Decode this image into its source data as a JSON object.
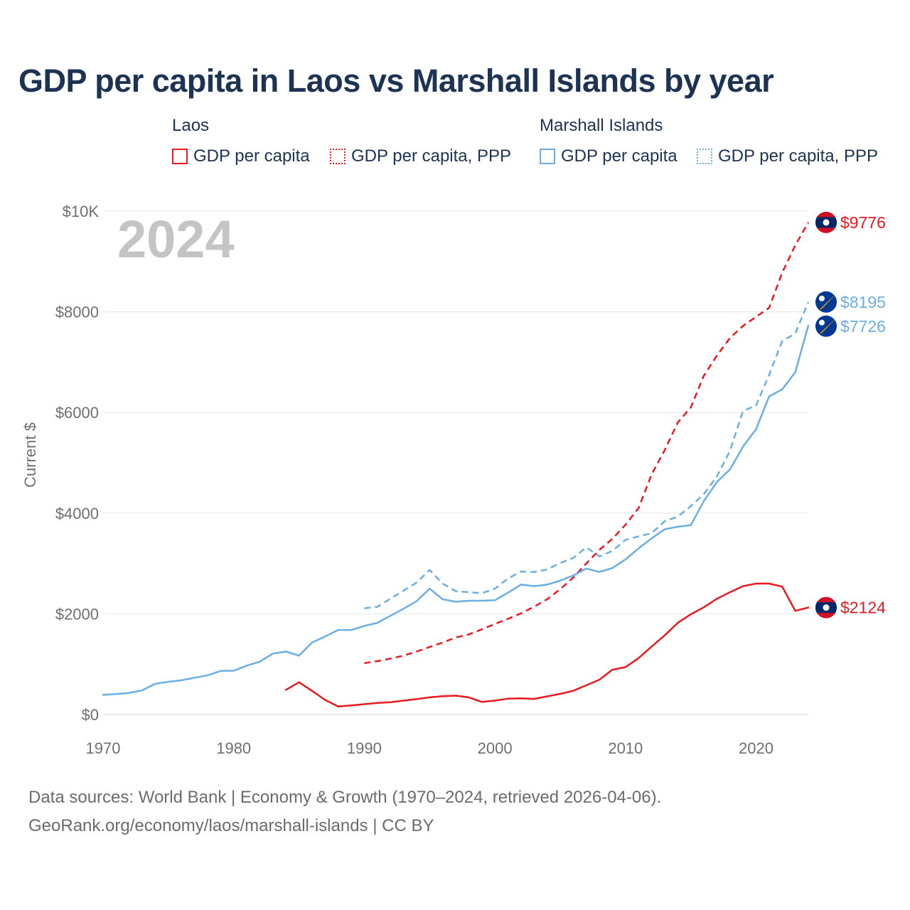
{
  "header": {
    "title": "GDP per capita in Laos vs Marshall Islands by year"
  },
  "legend": {
    "groups": [
      {
        "country": "Laos",
        "items": [
          {
            "label": "GDP per capita",
            "color": "#e8191f",
            "style": "solid"
          },
          {
            "label": "GDP per capita, PPP",
            "color": "#e8191f",
            "style": "dotted"
          }
        ]
      },
      {
        "country": "Marshall Islands",
        "items": [
          {
            "label": "GDP per capita",
            "color": "#6aaee3",
            "style": "solid"
          },
          {
            "label": "GDP per capita, PPP",
            "color": "#6aaee3",
            "style": "dotted"
          }
        ]
      }
    ]
  },
  "chart_data": {
    "type": "line",
    "year_overlay": "2024",
    "ylabel": "Current $",
    "xlim": [
      1970,
      2024
    ],
    "ylim": [
      0,
      10000
    ],
    "x_ticks": [
      {
        "value": 1970,
        "label": "1970"
      },
      {
        "value": 1980,
        "label": "1980"
      },
      {
        "value": 1990,
        "label": "1990"
      },
      {
        "value": 2000,
        "label": "2000"
      },
      {
        "value": 2010,
        "label": "2010"
      },
      {
        "value": 2020,
        "label": "2020"
      }
    ],
    "y_ticks": [
      {
        "value": 0,
        "label": "$0"
      },
      {
        "value": 2000,
        "label": "$2000"
      },
      {
        "value": 4000,
        "label": "$4000"
      },
      {
        "value": 6000,
        "label": "$6000"
      },
      {
        "value": 8000,
        "label": "$8000"
      },
      {
        "value": 10000,
        "label": "$10K"
      }
    ],
    "grid": true,
    "series": [
      {
        "name": "Laos GDP per capita",
        "country": "Laos",
        "color": "#e8191f",
        "dashed": false,
        "flag": "laos-flag-icon",
        "end_label": "$2124",
        "points": [
          [
            1984,
            490
          ],
          [
            1985,
            640
          ],
          [
            1986,
            470
          ],
          [
            1987,
            290
          ],
          [
            1988,
            160
          ],
          [
            1989,
            180
          ],
          [
            1990,
            205
          ],
          [
            1991,
            230
          ],
          [
            1992,
            245
          ],
          [
            1993,
            275
          ],
          [
            1994,
            305
          ],
          [
            1995,
            340
          ],
          [
            1996,
            365
          ],
          [
            1997,
            375
          ],
          [
            1998,
            340
          ],
          [
            1999,
            250
          ],
          [
            2000,
            275
          ],
          [
            2001,
            315
          ],
          [
            2002,
            320
          ],
          [
            2003,
            310
          ],
          [
            2004,
            360
          ],
          [
            2005,
            410
          ],
          [
            2006,
            470
          ],
          [
            2007,
            580
          ],
          [
            2008,
            690
          ],
          [
            2009,
            890
          ],
          [
            2010,
            940
          ],
          [
            2011,
            1120
          ],
          [
            2012,
            1350
          ],
          [
            2013,
            1570
          ],
          [
            2014,
            1820
          ],
          [
            2015,
            1990
          ],
          [
            2016,
            2130
          ],
          [
            2017,
            2300
          ],
          [
            2018,
            2430
          ],
          [
            2019,
            2550
          ],
          [
            2020,
            2600
          ],
          [
            2021,
            2600
          ],
          [
            2022,
            2540
          ],
          [
            2023,
            2060
          ],
          [
            2024,
            2124
          ]
        ]
      },
      {
        "name": "Laos GDP per capita, PPP",
        "country": "Laos",
        "color": "#e8191f",
        "dashed": true,
        "flag": "laos-flag-icon",
        "end_label": "$9776",
        "points": [
          [
            1990,
            1020
          ],
          [
            1991,
            1060
          ],
          [
            1992,
            1110
          ],
          [
            1993,
            1170
          ],
          [
            1994,
            1250
          ],
          [
            1995,
            1340
          ],
          [
            1996,
            1430
          ],
          [
            1997,
            1530
          ],
          [
            1998,
            1590
          ],
          [
            1999,
            1690
          ],
          [
            2000,
            1800
          ],
          [
            2001,
            1900
          ],
          [
            2002,
            2010
          ],
          [
            2003,
            2140
          ],
          [
            2004,
            2290
          ],
          [
            2005,
            2490
          ],
          [
            2006,
            2720
          ],
          [
            2007,
            3000
          ],
          [
            2008,
            3270
          ],
          [
            2009,
            3490
          ],
          [
            2010,
            3770
          ],
          [
            2011,
            4100
          ],
          [
            2012,
            4770
          ],
          [
            2013,
            5250
          ],
          [
            2014,
            5800
          ],
          [
            2015,
            6100
          ],
          [
            2016,
            6730
          ],
          [
            2017,
            7130
          ],
          [
            2018,
            7480
          ],
          [
            2019,
            7720
          ],
          [
            2020,
            7900
          ],
          [
            2021,
            8080
          ],
          [
            2022,
            8780
          ],
          [
            2023,
            9320
          ],
          [
            2024,
            9776
          ]
        ]
      },
      {
        "name": "Marshall Islands GDP per capita",
        "country": "Marshall Islands",
        "color": "#6aaee3",
        "dashed": false,
        "flag": "marshall-islands-flag-icon",
        "end_label": "$7726",
        "points": [
          [
            1970,
            390
          ],
          [
            1971,
            405
          ],
          [
            1972,
            430
          ],
          [
            1973,
            480
          ],
          [
            1974,
            610
          ],
          [
            1975,
            650
          ],
          [
            1976,
            680
          ],
          [
            1977,
            730
          ],
          [
            1978,
            780
          ],
          [
            1979,
            865
          ],
          [
            1980,
            870
          ],
          [
            1981,
            970
          ],
          [
            1982,
            1050
          ],
          [
            1983,
            1210
          ],
          [
            1984,
            1250
          ],
          [
            1985,
            1170
          ],
          [
            1986,
            1430
          ],
          [
            1987,
            1550
          ],
          [
            1988,
            1680
          ],
          [
            1989,
            1680
          ],
          [
            1990,
            1760
          ],
          [
            1991,
            1820
          ],
          [
            1992,
            1960
          ],
          [
            1993,
            2100
          ],
          [
            1994,
            2250
          ],
          [
            1995,
            2500
          ],
          [
            1996,
            2290
          ],
          [
            1997,
            2240
          ],
          [
            1998,
            2260
          ],
          [
            1999,
            2260
          ],
          [
            2000,
            2270
          ],
          [
            2001,
            2420
          ],
          [
            2002,
            2580
          ],
          [
            2003,
            2550
          ],
          [
            2004,
            2580
          ],
          [
            2005,
            2660
          ],
          [
            2006,
            2760
          ],
          [
            2007,
            2900
          ],
          [
            2008,
            2830
          ],
          [
            2009,
            2910
          ],
          [
            2010,
            3080
          ],
          [
            2011,
            3300
          ],
          [
            2012,
            3500
          ],
          [
            2013,
            3680
          ],
          [
            2014,
            3730
          ],
          [
            2015,
            3760
          ],
          [
            2016,
            4240
          ],
          [
            2017,
            4620
          ],
          [
            2018,
            4870
          ],
          [
            2019,
            5320
          ],
          [
            2020,
            5670
          ],
          [
            2021,
            6320
          ],
          [
            2022,
            6460
          ],
          [
            2023,
            6800
          ],
          [
            2024,
            7726
          ]
        ]
      },
      {
        "name": "Marshall Islands GDP per capita, PPP",
        "country": "Marshall Islands",
        "color": "#6aaee3",
        "dashed": true,
        "flag": "marshall-islands-flag-icon",
        "end_label": "$8195",
        "points": [
          [
            1990,
            2110
          ],
          [
            1991,
            2140
          ],
          [
            1992,
            2300
          ],
          [
            1993,
            2460
          ],
          [
            1994,
            2620
          ],
          [
            1995,
            2870
          ],
          [
            1996,
            2600
          ],
          [
            1997,
            2450
          ],
          [
            1998,
            2430
          ],
          [
            1999,
            2410
          ],
          [
            2000,
            2500
          ],
          [
            2001,
            2700
          ],
          [
            2002,
            2840
          ],
          [
            2003,
            2830
          ],
          [
            2004,
            2880
          ],
          [
            2005,
            3010
          ],
          [
            2006,
            3110
          ],
          [
            2007,
            3320
          ],
          [
            2008,
            3140
          ],
          [
            2009,
            3250
          ],
          [
            2010,
            3470
          ],
          [
            2011,
            3540
          ],
          [
            2012,
            3600
          ],
          [
            2013,
            3840
          ],
          [
            2014,
            3930
          ],
          [
            2015,
            4140
          ],
          [
            2016,
            4380
          ],
          [
            2017,
            4730
          ],
          [
            2018,
            5240
          ],
          [
            2019,
            6030
          ],
          [
            2020,
            6140
          ],
          [
            2021,
            6750
          ],
          [
            2022,
            7420
          ],
          [
            2023,
            7570
          ],
          [
            2024,
            8195
          ]
        ]
      }
    ]
  },
  "footer": {
    "line1": "Data sources: World Bank | Economy & Growth (1970–2024, retrieved 2026-04-06).",
    "line2": "GeoRank.org/economy/laos/marshall-islands | CC BY"
  }
}
